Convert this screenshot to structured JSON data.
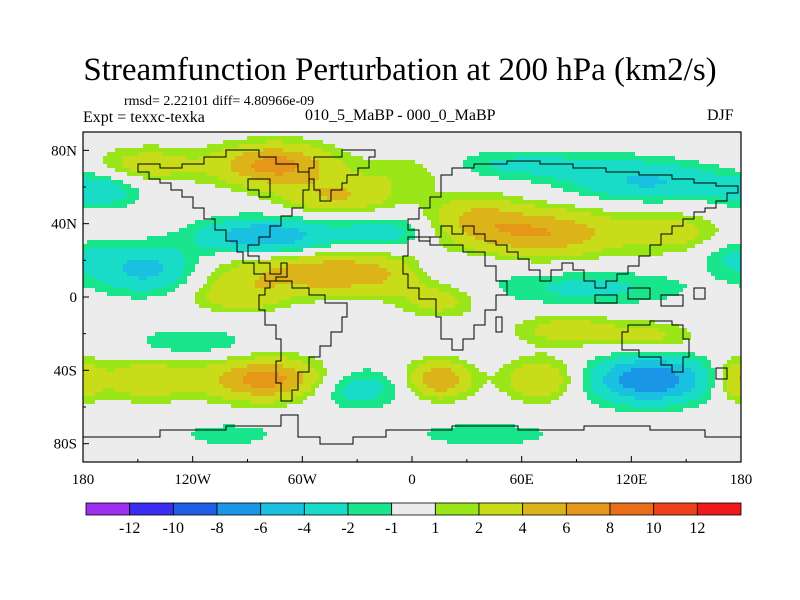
{
  "chart_data": {
    "type": "heatmap",
    "title": "Streamfunction Perturbation at 200 hPa (km2/s)",
    "stats_line": "rmsd= 2.22101 diff= 4.80966e-09",
    "left_label": "Expt = texxc-texka",
    "center_label": "010_5_MaBP - 000_0_MaBP",
    "right_label": "DJF",
    "x_ticks": [
      "180",
      "120W",
      "60W",
      "0",
      "60E",
      "120E",
      "180"
    ],
    "y_ticks": [
      "80N",
      "40N",
      "0",
      "40S",
      "80S"
    ],
    "xlim": [
      -180,
      180
    ],
    "ylim": [
      -90,
      90
    ],
    "colorbar": {
      "labels": [
        "-12",
        "-10",
        "-8",
        "-6",
        "-4",
        "-2",
        "-1",
        "1",
        "2",
        "4",
        "6",
        "8",
        "10",
        "12"
      ],
      "colors": [
        "#9b30f0",
        "#3a2cf0",
        "#1f5fe6",
        "#1996e6",
        "#19c0e0",
        "#19dcc8",
        "#19e68c",
        "#ececec",
        "#9ae619",
        "#c8dc19",
        "#dcb419",
        "#e69619",
        "#ea6e19",
        "#ee4019",
        "#f01818"
      ],
      "thresholds": [
        -12,
        -10,
        -8,
        -6,
        -4,
        -2,
        -1,
        1,
        2,
        4,
        6,
        8,
        10,
        12
      ]
    },
    "anomalies": [
      {
        "lon": -75,
        "lat": 72,
        "value": 7,
        "sx": 22,
        "sy": 8
      },
      {
        "lon": -145,
        "lat": 72,
        "value": 3,
        "sx": 20,
        "sy": 7
      },
      {
        "lon": 0,
        "lat": 70,
        "value": 2.5,
        "sx": 22,
        "sy": 7
      },
      {
        "lon": 60,
        "lat": 72,
        "value": -2.5,
        "sx": 50,
        "sy": 6
      },
      {
        "lon": 130,
        "lat": 62,
        "value": -4,
        "sx": 30,
        "sy": 7
      },
      {
        "lon": -170,
        "lat": 58,
        "value": -3,
        "sx": 16,
        "sy": 7
      },
      {
        "lon": -40,
        "lat": 55,
        "value": 4,
        "sx": 22,
        "sy": 7
      },
      {
        "lon": -80,
        "lat": 33,
        "value": -6,
        "sx": 25,
        "sy": 7
      },
      {
        "lon": -15,
        "lat": 35,
        "value": -3,
        "sx": 18,
        "sy": 7
      },
      {
        "lon": 70,
        "lat": 35,
        "value": 6,
        "sx": 32,
        "sy": 9
      },
      {
        "lon": 35,
        "lat": 45,
        "value": 3,
        "sx": 18,
        "sy": 8
      },
      {
        "lon": 145,
        "lat": 35,
        "value": 2.5,
        "sx": 18,
        "sy": 8
      },
      {
        "lon": 175,
        "lat": 22,
        "value": -2,
        "sx": 14,
        "sy": 7
      },
      {
        "lon": 20,
        "lat": 15,
        "value": -3,
        "sx": 22,
        "sy": 6
      },
      {
        "lon": 95,
        "lat": 5,
        "value": -2.5,
        "sx": 40,
        "sy": 7
      },
      {
        "lon": -145,
        "lat": 15,
        "value": -5,
        "sx": 20,
        "sy": 9
      },
      {
        "lon": -40,
        "lat": 13,
        "value": 6,
        "sx": 45,
        "sy": 8
      },
      {
        "lon": -95,
        "lat": 0,
        "value": 3,
        "sx": 18,
        "sy": 6
      },
      {
        "lon": 15,
        "lat": -3,
        "value": 2.5,
        "sx": 15,
        "sy": 6
      },
      {
        "lon": 85,
        "lat": -18,
        "value": 3,
        "sx": 20,
        "sy": 6
      },
      {
        "lon": -80,
        "lat": -45,
        "value": 7,
        "sx": 22,
        "sy": 8
      },
      {
        "lon": -145,
        "lat": -45,
        "value": 3.5,
        "sx": 20,
        "sy": 8
      },
      {
        "lon": -30,
        "lat": -50,
        "value": -3,
        "sx": 18,
        "sy": 8
      },
      {
        "lon": 15,
        "lat": -45,
        "value": 6,
        "sx": 12,
        "sy": 7
      },
      {
        "lon": 70,
        "lat": -45,
        "value": 4,
        "sx": 14,
        "sy": 8
      },
      {
        "lon": 130,
        "lat": -45,
        "value": -8,
        "sx": 22,
        "sy": 9
      },
      {
        "lon": 130,
        "lat": -22,
        "value": 2.5,
        "sx": 18,
        "sy": 6
      },
      {
        "lon": 178,
        "lat": -45,
        "value": 4,
        "sx": 8,
        "sy": 8
      },
      {
        "lon": -120,
        "lat": -25,
        "value": -2,
        "sx": 24,
        "sy": 6
      },
      {
        "lon": 40,
        "lat": -75,
        "value": -1.8,
        "sx": 30,
        "sy": 5
      },
      {
        "lon": -100,
        "lat": -75,
        "value": -1.6,
        "sx": 22,
        "sy": 5
      }
    ]
  }
}
